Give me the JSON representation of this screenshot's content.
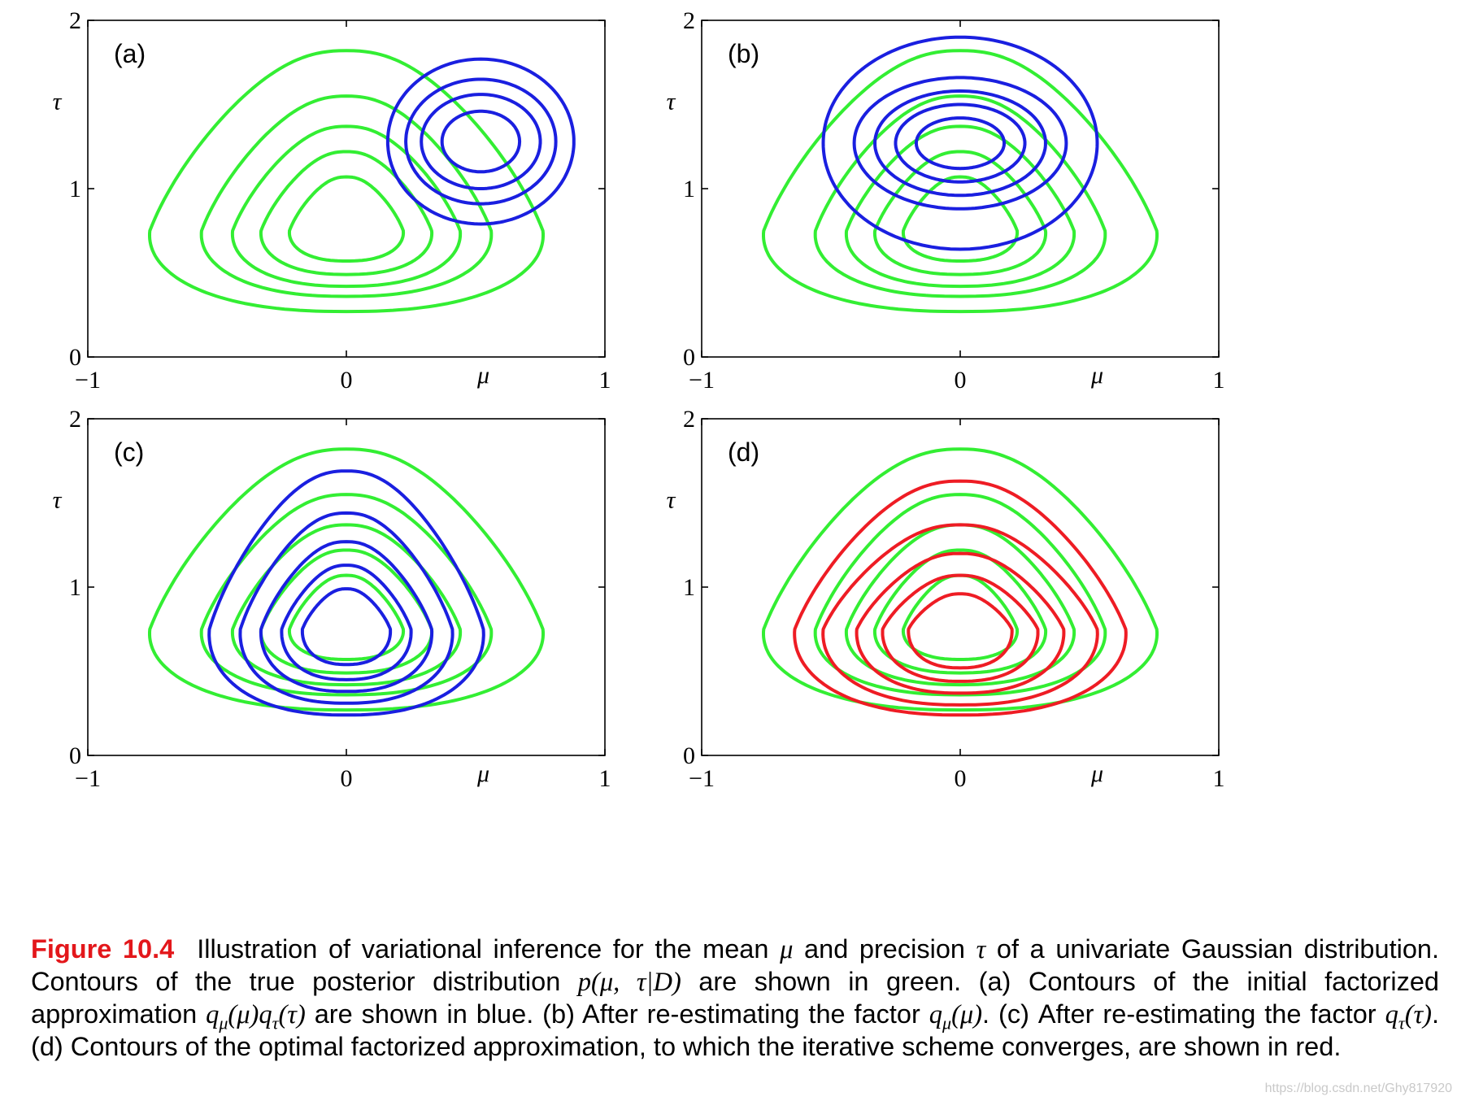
{
  "figure": {
    "colors": {
      "true_posterior": "#33ee33",
      "approx": "#1a1fe0",
      "optimal": "#ee1c24",
      "axis": "#000000"
    },
    "axis_labels": {
      "x": "μ",
      "y": "τ"
    }
  },
  "chart_data": [
    {
      "type": "contour",
      "panel": "(a)",
      "xlabel": "μ",
      "ylabel": "τ",
      "xlim": [
        -1,
        1
      ],
      "ylim": [
        0,
        2
      ],
      "xticks": [
        "−1",
        "0",
        "1"
      ],
      "yticks": [
        "0",
        "1",
        "2"
      ],
      "series": [
        {
          "name": "true posterior p(μ,τ|D)",
          "color": "#33ee33",
          "shape": "skewed",
          "center": [
            0,
            0.75
          ],
          "rx": [
            0.22,
            0.33,
            0.44,
            0.56,
            0.76
          ],
          "top": [
            1.07,
            1.22,
            1.37,
            1.55,
            1.82
          ],
          "bottom": [
            0.57,
            0.49,
            0.42,
            0.36,
            0.27
          ]
        },
        {
          "name": "initial approximation qμ(μ)qτ(τ)",
          "color": "#1a1fe0",
          "shape": "ellipse",
          "center": [
            0.52,
            1.28
          ],
          "rx": [
            0.15,
            0.23,
            0.29,
            0.36
          ],
          "ry": [
            0.18,
            0.28,
            0.37,
            0.49
          ]
        }
      ]
    },
    {
      "type": "contour",
      "panel": "(b)",
      "xlabel": "μ",
      "ylabel": "τ",
      "xlim": [
        -1,
        1
      ],
      "ylim": [
        0,
        2
      ],
      "xticks": [
        "−1",
        "0",
        "1"
      ],
      "yticks": [
        "0",
        "1",
        "2"
      ],
      "series": [
        {
          "name": "true posterior p(μ,τ|D)",
          "color": "#33ee33",
          "shape": "skewed",
          "center": [
            0,
            0.75
          ],
          "rx": [
            0.22,
            0.33,
            0.44,
            0.56,
            0.76
          ],
          "top": [
            1.07,
            1.22,
            1.37,
            1.55,
            1.82
          ],
          "bottom": [
            0.57,
            0.49,
            0.42,
            0.36,
            0.27
          ]
        },
        {
          "name": "after re-estimating qμ(μ)",
          "color": "#1a1fe0",
          "shape": "ellipse",
          "center": [
            0,
            1.27
          ],
          "rx": [
            0.17,
            0.25,
            0.33,
            0.41,
            0.53
          ],
          "ry": [
            0.15,
            0.23,
            0.31,
            0.39,
            0.63
          ]
        }
      ]
    },
    {
      "type": "contour",
      "panel": "(c)",
      "xlabel": "μ",
      "ylabel": "τ",
      "xlim": [
        -1,
        1
      ],
      "ylim": [
        0,
        2
      ],
      "xticks": [
        "−1",
        "0",
        "1"
      ],
      "yticks": [
        "0",
        "1",
        "2"
      ],
      "series": [
        {
          "name": "true posterior p(μ,τ|D)",
          "color": "#33ee33",
          "shape": "skewed",
          "center": [
            0,
            0.75
          ],
          "rx": [
            0.22,
            0.33,
            0.44,
            0.56,
            0.76
          ],
          "top": [
            1.07,
            1.22,
            1.37,
            1.55,
            1.82
          ],
          "bottom": [
            0.57,
            0.49,
            0.42,
            0.36,
            0.27
          ]
        },
        {
          "name": "after re-estimating qτ(τ)",
          "color": "#1a1fe0",
          "shape": "skewed",
          "center": [
            0,
            0.75
          ],
          "rx": [
            0.17,
            0.25,
            0.33,
            0.41,
            0.53
          ],
          "top": [
            0.99,
            1.13,
            1.27,
            1.44,
            1.69
          ],
          "bottom": [
            0.54,
            0.45,
            0.38,
            0.31,
            0.24
          ]
        }
      ]
    },
    {
      "type": "contour",
      "panel": "(d)",
      "xlabel": "μ",
      "ylabel": "τ",
      "xlim": [
        -1,
        1
      ],
      "ylim": [
        0,
        2
      ],
      "xticks": [
        "−1",
        "0",
        "1"
      ],
      "yticks": [
        "0",
        "1",
        "2"
      ],
      "series": [
        {
          "name": "true posterior p(μ,τ|D)",
          "color": "#33ee33",
          "shape": "skewed",
          "center": [
            0,
            0.75
          ],
          "rx": [
            0.22,
            0.33,
            0.44,
            0.56,
            0.76
          ],
          "top": [
            1.07,
            1.22,
            1.37,
            1.55,
            1.82
          ],
          "bottom": [
            0.57,
            0.49,
            0.42,
            0.36,
            0.27
          ]
        },
        {
          "name": "optimal factorized approximation",
          "color": "#ee1c24",
          "shape": "skewed",
          "center": [
            0,
            0.75
          ],
          "rx": [
            0.2,
            0.3,
            0.4,
            0.53,
            0.64
          ],
          "top": [
            0.96,
            1.07,
            1.2,
            1.37,
            1.63
          ],
          "bottom": [
            0.52,
            0.44,
            0.37,
            0.3,
            0.24
          ]
        }
      ]
    }
  ],
  "caption": {
    "figure_number": "Figure 10.4",
    "text_1": "Illustration of variational inference for the mean ",
    "sym_mu": "μ",
    "text_2": " and precision ",
    "sym_tau": "τ",
    "text_3": " of a univariate Gaussian distribution. Contours of the true posterior distribution ",
    "math_posterior": "p(μ, τ|D)",
    "text_4": " are shown in green. (a) Contours of the initial factorized approximation ",
    "math_qmu": "q",
    "math_qmu_sub": "μ",
    "math_qmu_arg": "(μ)",
    "math_qtau": "q",
    "math_qtau_sub": "τ",
    "math_qtau_arg": "(τ)",
    "text_5": " are shown in blue. (b) After re-estimating the factor ",
    "text_6": ". (c) After re-estimating the factor ",
    "text_7": ". (d) Contours of the optimal factorized approximation, to which the iterative scheme converges, are shown in red."
  },
  "watermark": "https://blog.csdn.net/Ghy817920"
}
